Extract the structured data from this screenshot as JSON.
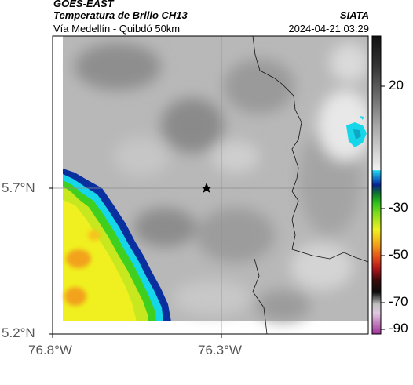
{
  "header": {
    "agency": "GOES-EAST",
    "product": "Temperatura de Brillo CH13",
    "region": "Vía Medellín - Quibdó 50km",
    "brand": "SIATA",
    "timestamp": "2024-04-21 03:29"
  },
  "map": {
    "lat_ticks": [
      "5.7°N",
      "5.2°N"
    ],
    "lon_ticks": [
      "76.8°W",
      "76.3°W"
    ],
    "marker_icon": "star-icon"
  },
  "colorbar": {
    "ticks": [
      "20",
      "-30",
      "-50",
      "-70",
      "-90"
    ],
    "unit": ""
  },
  "colors": {
    "cloud_green": "#3fcf1f",
    "cloud_yellow": "#f0f020",
    "cloud_orange": "#f3a21a",
    "cloud_cyan": "#16d6ea",
    "cloud_blue": "#0a2f9e"
  }
}
